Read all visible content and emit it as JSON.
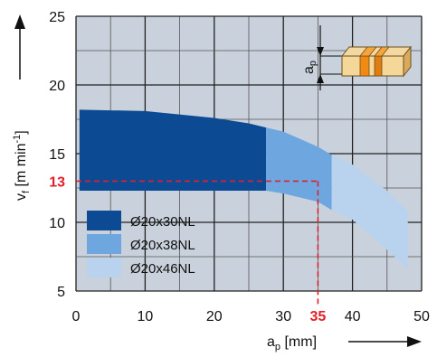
{
  "chart_data": {
    "type": "area",
    "title": "",
    "xlabel": {
      "main": "a",
      "sub": "p",
      "unit": " [mm]"
    },
    "ylabel": {
      "main": "v",
      "sub": "f",
      "unit": " [m min",
      "unit_sup": "-1",
      "unit_end": "]"
    },
    "xlim": [
      0,
      50
    ],
    "ylim": [
      5,
      25
    ],
    "xticks": [
      0,
      10,
      20,
      30,
      40,
      50
    ],
    "yticks": [
      5,
      10,
      15,
      20,
      25
    ],
    "grid": true,
    "grid_minor_step": {
      "x": 5,
      "y": 2.5
    },
    "background_color": "#c9d2dc",
    "series": [
      {
        "name": "Ø20x30NL",
        "color": "#0c4b94",
        "x": [
          0.5,
          10,
          20,
          25,
          27.5
        ],
        "upper": [
          18.2,
          18.1,
          17.6,
          17.2,
          16.9
        ],
        "lower": [
          12.3,
          12.3,
          12.3,
          12.3,
          12.3
        ]
      },
      {
        "name": "Ø20x38NL",
        "color": "#6ea6df",
        "x": [
          27.5,
          30,
          35,
          37
        ],
        "upper": [
          16.9,
          16.6,
          15.5,
          14.9
        ],
        "lower": [
          12.3,
          12.1,
          11.5,
          10.9
        ]
      },
      {
        "name": "Ø20x46NL",
        "color": "#b9d3ee",
        "x": [
          37,
          40,
          45,
          48
        ],
        "upper": [
          14.9,
          14.2,
          12.3,
          10.8
        ],
        "lower": [
          10.9,
          10.2,
          8.0,
          6.6
        ]
      }
    ],
    "highlight": {
      "x": 35,
      "y": 13,
      "x_label": "35",
      "y_label": "13",
      "color": "#e0202a"
    },
    "legend_position": "bottom-left",
    "inset_label": {
      "main": "a",
      "sub": "p"
    }
  }
}
